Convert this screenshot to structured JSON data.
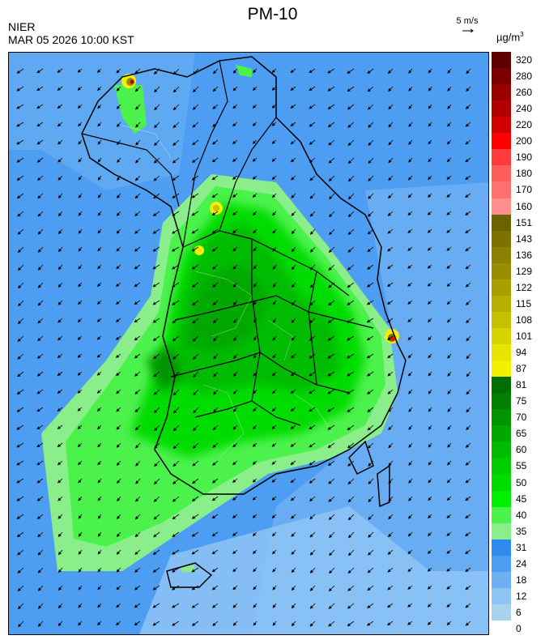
{
  "header": {
    "title": "PM-10",
    "agency": "NIER",
    "datetime": "MAR 05 2026 10:00 KST",
    "wind_reference": "5 m/s",
    "unit_base": "µg/m",
    "unit_exp": "3"
  },
  "legend": {
    "labels": [
      "320",
      "280",
      "260",
      "240",
      "220",
      "200",
      "190",
      "180",
      "170",
      "160",
      "151",
      "143",
      "136",
      "129",
      "122",
      "115",
      "108",
      "101",
      "94",
      "87",
      "81",
      "75",
      "70",
      "65",
      "60",
      "55",
      "50",
      "45",
      "40",
      "35",
      "31",
      "24",
      "18",
      "12",
      "6",
      "0"
    ],
    "colors": [
      "#5e0000",
      "#7a0000",
      "#990000",
      "#b30000",
      "#d00000",
      "#ff0000",
      "#ff3a3a",
      "#ff5c5c",
      "#ff7070",
      "#ff8f8f",
      "#6b6200",
      "#7d7200",
      "#8c8000",
      "#9a8e00",
      "#a9a000",
      "#b8b000",
      "#c6c000",
      "#d6d300",
      "#e6e400",
      "#f5ef00",
      "#006e00",
      "#007f00",
      "#009400",
      "#00a800",
      "#00bc00",
      "#00cc00",
      "#00dc00",
      "#00ee00",
      "#4cf24c",
      "#8aee8a",
      "#2e8cf0",
      "#4d9df2",
      "#6db0f4",
      "#8ec4f4",
      "#a9d2ee"
    ]
  },
  "map": {
    "sea_color": "#4d9df2",
    "labels": []
  }
}
